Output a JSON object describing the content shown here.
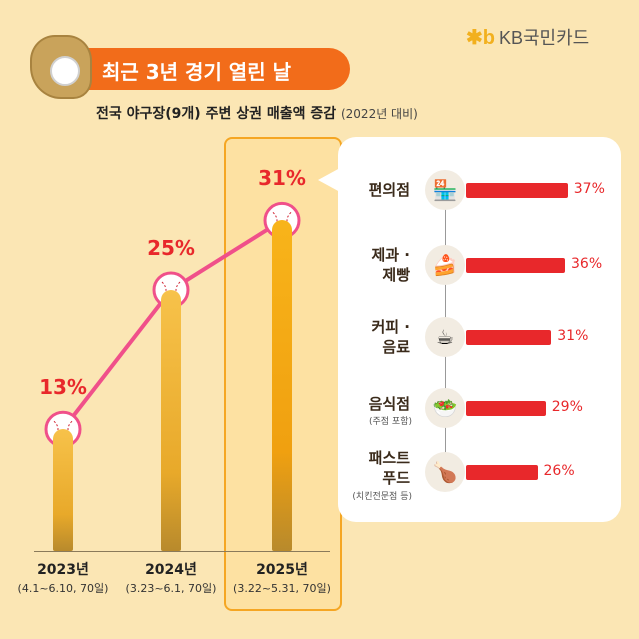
{
  "brand": {
    "logo_text": "KB국민카드"
  },
  "title": "최근 3년 경기 열린 날",
  "subtitle": {
    "main": "전국 야구장(9개) 주변 상권 매출액 증감",
    "note": "(2022년 대비)"
  },
  "colors": {
    "accent": "#f26c1a",
    "bar": "#e8282b",
    "line": "#f0508a",
    "highlight": "#f5a623",
    "background": "#fbe6b4"
  },
  "chart_data": [
    {
      "type": "line",
      "categories": [
        "2023년",
        "2024년",
        "2025년"
      ],
      "periods": [
        "(4.1~6.10, 70일)",
        "(3.23~6.1, 70일)",
        "(3.22~5.31, 70일)"
      ],
      "values": [
        13,
        25,
        31
      ],
      "labels": [
        "13%",
        "25%",
        "31%"
      ],
      "highlighted": "2025년"
    },
    {
      "type": "bar",
      "orientation": "horizontal",
      "categories": [
        {
          "lines": [
            "편의점"
          ],
          "note": "",
          "icon": "convenience-store-icon",
          "glyph": "🏪"
        },
        {
          "lines": [
            "제과 ·",
            "제빵"
          ],
          "note": "",
          "icon": "cake-icon",
          "glyph": "🍰"
        },
        {
          "lines": [
            "커피 ·",
            "음료"
          ],
          "note": "",
          "icon": "coffee-cup-icon",
          "glyph": "☕"
        },
        {
          "lines": [
            "음식점"
          ],
          "note": "(주점 포함)",
          "icon": "food-bowl-icon",
          "glyph": "🥗"
        },
        {
          "lines": [
            "패스트",
            "푸드"
          ],
          "note": "(치킨전문점 등)",
          "icon": "fried-chicken-icon",
          "glyph": "🍗"
        }
      ],
      "values": [
        37,
        36,
        31,
        29,
        26
      ],
      "labels": [
        "37%",
        "36%",
        "31%",
        "29%",
        "26%"
      ]
    }
  ]
}
